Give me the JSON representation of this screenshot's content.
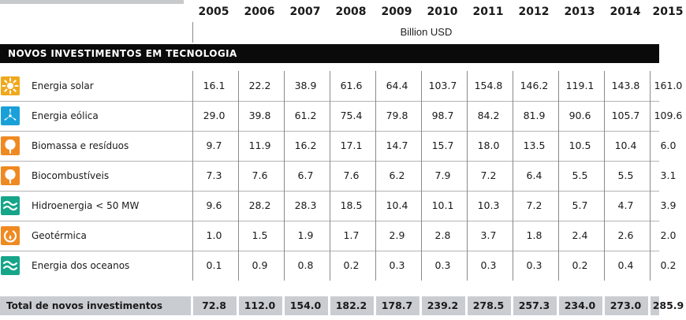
{
  "table": {
    "years": [
      "2005",
      "2006",
      "2007",
      "2008",
      "2009",
      "2010",
      "2011",
      "2012",
      "2013",
      "2014",
      "2015"
    ],
    "unit": "Billion USD",
    "section_title": "NOVOS INVESTIMENTOS EM TECNOLOGIA",
    "rows": [
      {
        "icon": "sun-icon",
        "icon_color": "#f0a81c",
        "label": "Energia solar",
        "values": [
          "16.1",
          "22.2",
          "38.9",
          "61.6",
          "64.4",
          "103.7",
          "154.8",
          "146.2",
          "119.1",
          "143.8",
          "161.0"
        ]
      },
      {
        "icon": "wind-turbine-icon",
        "icon_color": "#1aa0d8",
        "label": "Energia eólica",
        "values": [
          "29.0",
          "39.8",
          "61.2",
          "75.4",
          "79.8",
          "98.7",
          "84.2",
          "81.9",
          "90.6",
          "105.7",
          "109.6"
        ]
      },
      {
        "icon": "leaf-icon",
        "icon_color": "#ef8a22",
        "label": "Biomassa e resíduos",
        "values": [
          "9.7",
          "11.9",
          "16.2",
          "17.1",
          "14.7",
          "15.7",
          "18.0",
          "13.5",
          "10.5",
          "10.4",
          "6.0"
        ]
      },
      {
        "icon": "leaf-icon",
        "icon_color": "#ef8a22",
        "label": "Biocombustíveis",
        "values": [
          "7.3",
          "7.6",
          "6.7",
          "7.6",
          "6.2",
          "7.9",
          "7.2",
          "6.4",
          "5.5",
          "5.5",
          "3.1"
        ]
      },
      {
        "icon": "waves-icon",
        "icon_color": "#17a58a",
        "label": "Hidroenergia < 50 MW",
        "values": [
          "9.6",
          "28.2",
          "28.3",
          "18.5",
          "10.4",
          "10.1",
          "10.3",
          "7.2",
          "5.7",
          "4.7",
          "3.9"
        ]
      },
      {
        "icon": "geothermal-icon",
        "icon_color": "#ef8a22",
        "label": "Geotérmica",
        "values": [
          "1.0",
          "1.5",
          "1.9",
          "1.7",
          "2.9",
          "2.8",
          "3.7",
          "1.8",
          "2.4",
          "2.6",
          "2.0"
        ]
      },
      {
        "icon": "waves-icon",
        "icon_color": "#17a58a",
        "label": "Energia dos oceanos",
        "values": [
          "0.1",
          "0.9",
          "0.8",
          "0.2",
          "0.3",
          "0.3",
          "0.3",
          "0.3",
          "0.2",
          "0.4",
          "0.2"
        ]
      }
    ],
    "total": {
      "label": "Total de novos investimentos",
      "values": [
        "72.8",
        "112.0",
        "154.0",
        "182.2",
        "178.7",
        "239.2",
        "278.5",
        "257.3",
        "234.0",
        "273.0",
        "285.9"
      ]
    }
  }
}
